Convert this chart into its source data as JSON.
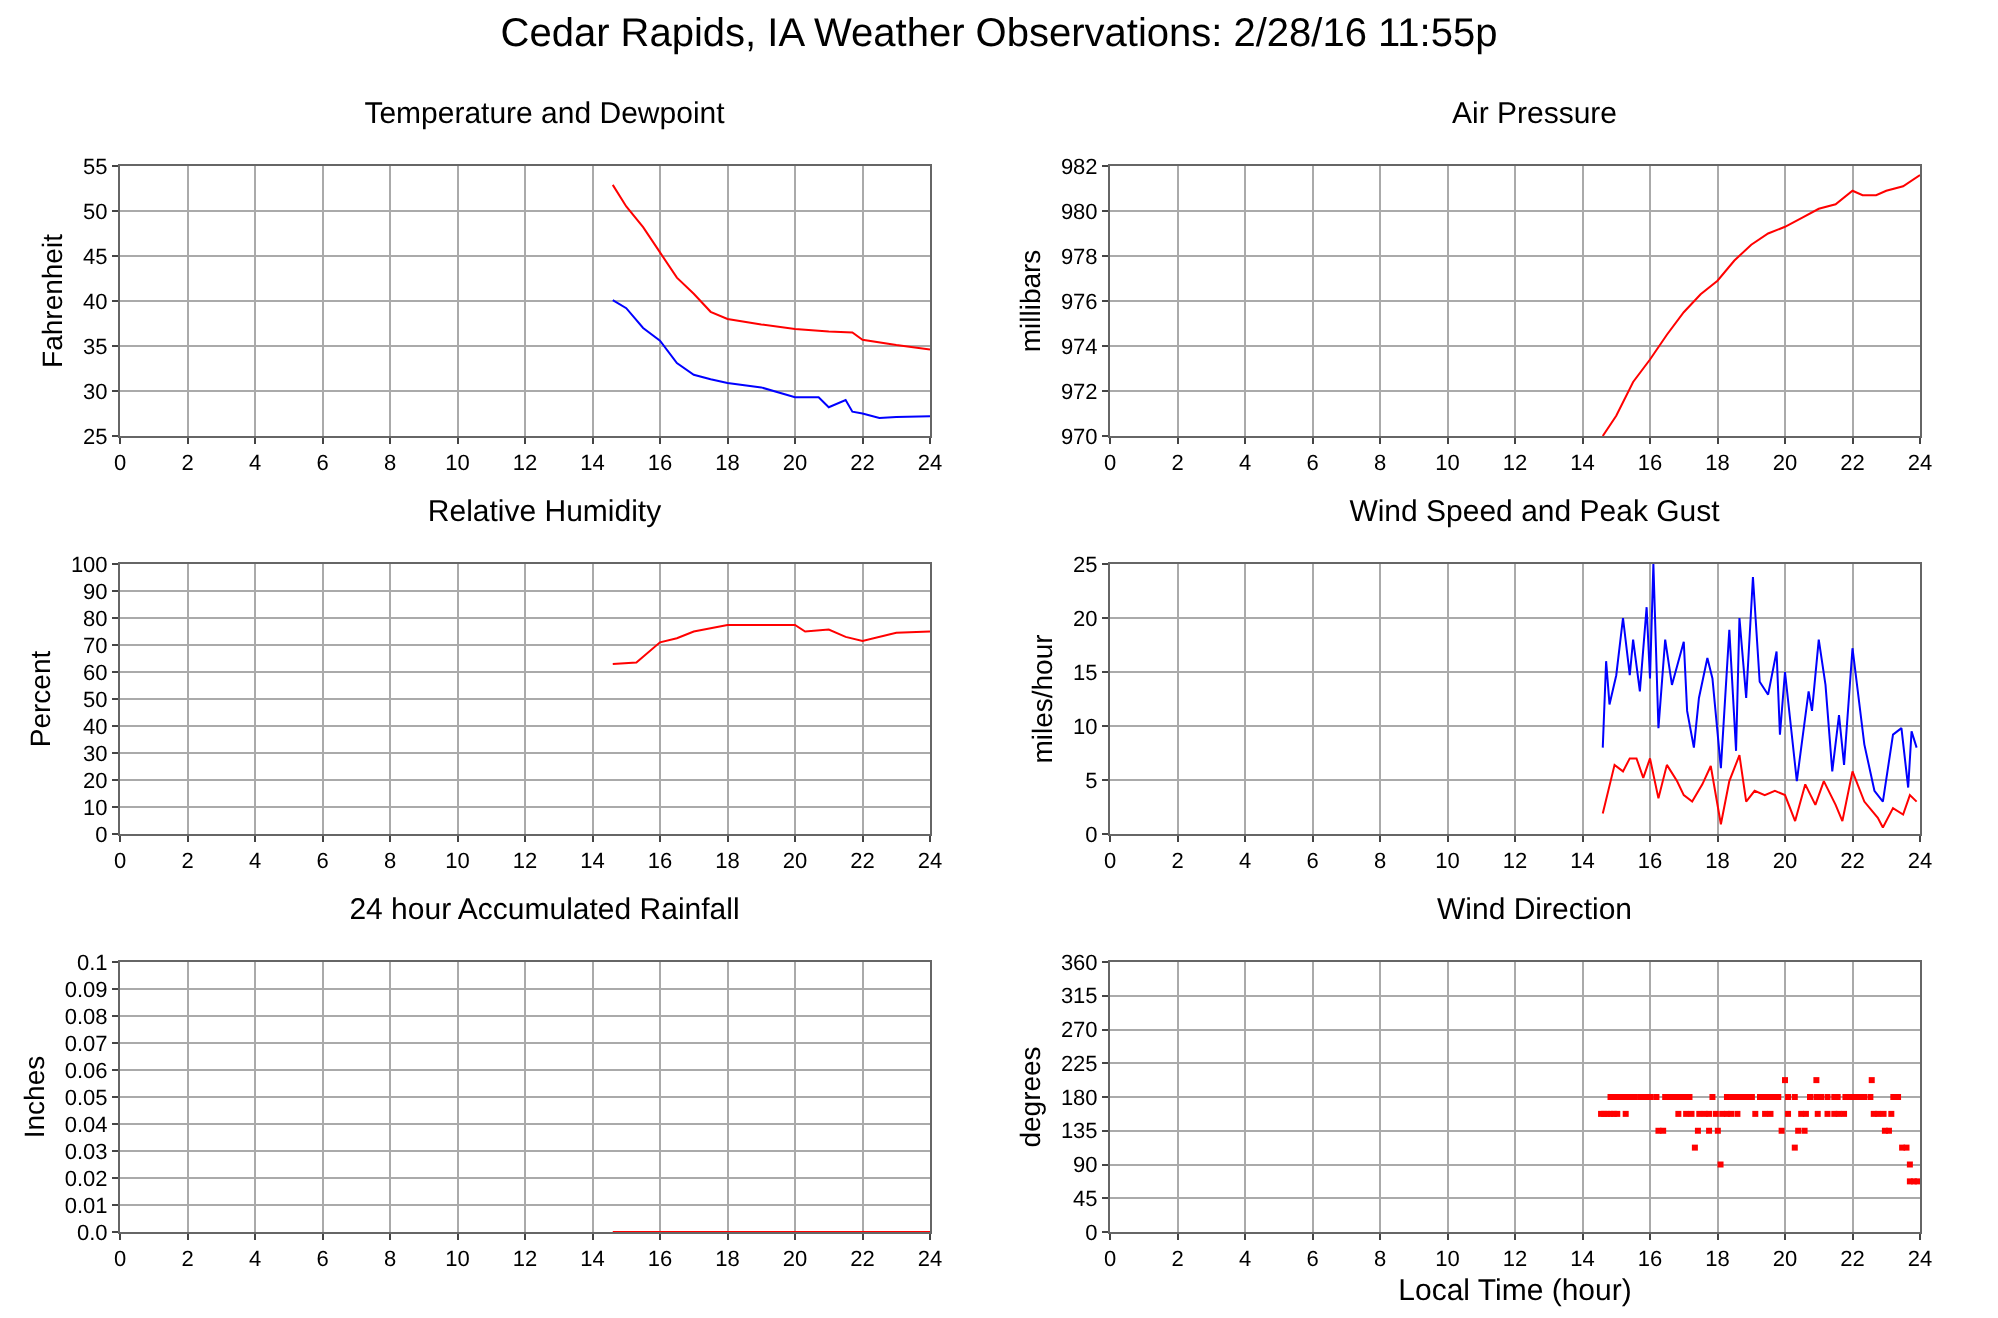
{
  "chart_data": [
    {
      "type": "line",
      "title": "Temperature and Dewpoint",
      "ylabel": "Fahrenheit",
      "annotations": [
        "Cedar Rapids, IA Weather Observations: 2/28/16 11:55p"
      ],
      "grid": true,
      "marker": "none",
      "line_style": "solid",
      "xlim": [
        0,
        24
      ],
      "xticks": [
        0,
        2,
        4,
        6,
        8,
        10,
        12,
        14,
        16,
        18,
        20,
        22,
        24
      ],
      "ylim": [
        25,
        55
      ],
      "yticks": [
        25,
        30,
        35,
        40,
        45,
        50,
        55
      ],
      "series": [
        {
          "color": "#ff0000",
          "x": [
            14.6,
            15,
            15.5,
            16,
            16.5,
            17,
            17.5,
            18,
            19,
            20,
            21,
            21.7,
            22,
            23,
            24
          ],
          "values": [
            52.9,
            50.5,
            48.2,
            45.4,
            42.6,
            40.8,
            38.8,
            38,
            37.4,
            36.9,
            36.6,
            36.5,
            35.7,
            35.1,
            34.6
          ]
        },
        {
          "color": "#0000ff",
          "x": [
            14.6,
            15,
            15.5,
            16,
            16.5,
            17,
            17.5,
            18,
            19,
            20,
            20.7,
            21,
            21.5,
            21.7,
            22,
            22.5,
            23,
            24
          ],
          "values": [
            40.1,
            39.2,
            37,
            35.6,
            33.1,
            31.8,
            31.3,
            30.9,
            30.4,
            29.3,
            29.3,
            28.2,
            29,
            27.7,
            27.5,
            27,
            27.1,
            27.2
          ]
        }
      ]
    },
    {
      "type": "line",
      "title": "Air Pressure",
      "ylabel": "millibars",
      "grid": true,
      "marker": "none",
      "line_style": "solid",
      "xlim": [
        0,
        24
      ],
      "xticks": [
        0,
        2,
        4,
        6,
        8,
        10,
        12,
        14,
        16,
        18,
        20,
        22,
        24
      ],
      "ylim": [
        970,
        982
      ],
      "yticks": [
        970,
        972,
        974,
        976,
        978,
        980,
        982
      ],
      "series": [
        {
          "color": "#ff0000",
          "x": [
            14.6,
            15,
            15.5,
            16,
            16.5,
            17,
            17.5,
            18,
            18.5,
            19,
            19.5,
            20,
            20.5,
            21,
            21.5,
            22,
            22.3,
            22.7,
            23,
            23.5,
            24
          ],
          "values": [
            970,
            970.9,
            972.4,
            973.4,
            974.5,
            975.5,
            976.3,
            976.9,
            977.8,
            978.5,
            979,
            979.3,
            979.7,
            980.1,
            980.3,
            980.9,
            980.7,
            980.7,
            980.9,
            981.1,
            981.6
          ]
        }
      ]
    },
    {
      "type": "line",
      "title": "Relative Humidity",
      "ylabel": "Percent",
      "grid": true,
      "marker": "none",
      "line_style": "solid",
      "xlim": [
        0,
        24
      ],
      "xticks": [
        0,
        2,
        4,
        6,
        8,
        10,
        12,
        14,
        16,
        18,
        20,
        22,
        24
      ],
      "ylim": [
        0,
        100
      ],
      "yticks": [
        0,
        10,
        20,
        30,
        40,
        50,
        60,
        70,
        80,
        90,
        100
      ],
      "series": [
        {
          "color": "#ff0000",
          "x": [
            14.6,
            15.3,
            16,
            16.5,
            17,
            18,
            20,
            20.3,
            21,
            21.5,
            22,
            23,
            24
          ],
          "values": [
            63,
            63.5,
            71,
            72.5,
            75,
            77.4,
            77.4,
            75,
            75.7,
            73,
            71.5,
            74.5,
            75
          ]
        }
      ]
    },
    {
      "type": "line",
      "title": "Wind Speed and Peak Gust",
      "ylabel": "miles/hour",
      "grid": true,
      "marker": "none",
      "line_style": "solid",
      "xlim": [
        0,
        24
      ],
      "xticks": [
        0,
        2,
        4,
        6,
        8,
        10,
        12,
        14,
        16,
        18,
        20,
        22,
        24
      ],
      "ylim": [
        0,
        25
      ],
      "yticks": [
        0,
        5,
        10,
        15,
        20,
        25
      ],
      "series": [
        {
          "color": "#0000ff",
          "x": [
            14.6,
            14.7,
            14.8,
            15,
            15.2,
            15.4,
            15.5,
            15.7,
            15.9,
            16,
            16.1,
            16.25,
            16.45,
            16.65,
            17,
            17.1,
            17.3,
            17.45,
            17.7,
            17.85,
            18.1,
            18.35,
            18.55,
            18.65,
            18.85,
            19.05,
            19.25,
            19.5,
            19.75,
            19.85,
            20,
            20.35,
            20.7,
            20.8,
            21,
            21.2,
            21.4,
            21.6,
            21.75,
            22,
            22.35,
            22.65,
            22.9,
            23.2,
            23.45,
            23.65,
            23.75,
            23.9
          ],
          "values": [
            8,
            16,
            12,
            14.7,
            20,
            14.7,
            18,
            13.2,
            21,
            14.4,
            25,
            9.8,
            18,
            13.8,
            17.8,
            11.4,
            8,
            12.6,
            16.3,
            14.4,
            6.1,
            18.9,
            7.7,
            20,
            12.6,
            23.8,
            14.1,
            12.9,
            16.9,
            9.2,
            15,
            4.9,
            13.2,
            11.4,
            18,
            13.8,
            5.8,
            11,
            6.4,
            17.2,
            8.3,
            4,
            3,
            9.2,
            9.8,
            4.3,
            9.5,
            8
          ]
        },
        {
          "color": "#ff0000",
          "x": [
            14.6,
            14.95,
            15.2,
            15.4,
            15.6,
            15.8,
            16,
            16.25,
            16.5,
            16.8,
            17,
            17.25,
            17.55,
            17.8,
            18.1,
            18.35,
            18.65,
            18.85,
            19.1,
            19.4,
            19.7,
            20,
            20.3,
            20.6,
            20.9,
            21.15,
            21.5,
            21.7,
            22,
            22.35,
            22.75,
            22.9,
            23.2,
            23.5,
            23.7,
            23.9
          ],
          "values": [
            1.9,
            6.4,
            5.8,
            7,
            7,
            5.2,
            7,
            3.3,
            6.4,
            4.9,
            3.6,
            3,
            4.6,
            6.3,
            0.9,
            4.9,
            7.3,
            3,
            4,
            3.6,
            4,
            3.6,
            1.2,
            4.6,
            2.7,
            4.9,
            2.7,
            1.2,
            5.8,
            3,
            1.5,
            0.6,
            2.4,
            1.8,
            3.6,
            3
          ]
        }
      ]
    },
    {
      "type": "line",
      "title": "24 hour Accumulated Rainfall",
      "ylabel": "Inches",
      "grid": true,
      "marker": "none",
      "line_style": "solid",
      "xlim": [
        0,
        24
      ],
      "xticks": [
        0,
        2,
        4,
        6,
        8,
        10,
        12,
        14,
        16,
        18,
        20,
        22,
        24
      ],
      "ylim": [
        0,
        0.1
      ],
      "yticks": [
        {
          "value": 0,
          "label": "0.0"
        },
        0.01,
        0.02,
        0.03,
        0.04,
        0.05,
        0.06,
        0.07,
        0.08,
        0.09,
        0.1
      ],
      "series": [
        {
          "color": "#ff0000",
          "x": [
            14.6,
            24
          ],
          "values": [
            0,
            0
          ]
        }
      ]
    },
    {
      "type": "scatter",
      "title": "Wind Direction",
      "ylabel": "degrees",
      "xlabel": "Local Time (hour)",
      "grid": true,
      "marker": "square",
      "xlim": [
        0,
        24
      ],
      "xticks": [
        0,
        2,
        4,
        6,
        8,
        10,
        12,
        14,
        16,
        18,
        20,
        22,
        24
      ],
      "ylim": [
        0,
        360
      ],
      "yticks": [
        0,
        45,
        90,
        135,
        180,
        225,
        270,
        315,
        360
      ],
      "series": [
        {
          "color": "#ff0000",
          "x": [
            14.55,
            14.64,
            14.73,
            14.83,
            14.93,
            15.03,
            15.28,
            16.84,
            17.07,
            17.23,
            17.46,
            17.62,
            17.75,
            17.95,
            18.14,
            18.28,
            18.4,
            18.59,
            19.12,
            19.41,
            19.57,
            20.09,
            20.48,
            20.62,
            20.97,
            21.26,
            21.46,
            21.59,
            21.75,
            22.63,
            22.76,
            22.92,
            23.15,
            14.83,
            14.97,
            15.12,
            15.28,
            15.42,
            15.55,
            15.71,
            15.86,
            16.02,
            16.19,
            16.45,
            16.58,
            16.72,
            16.88,
            17.03,
            17.17,
            17.85,
            18.28,
            18.44,
            18.59,
            18.73,
            18.87,
            19.02,
            19.26,
            19.41,
            19.57,
            19.7,
            19.8,
            20.09,
            20.29,
            20.74,
            20.93,
            21.07,
            21.26,
            21.46,
            21.56,
            21.79,
            21.91,
            22.04,
            22.18,
            22.34,
            22.53,
            23.21,
            23.35,
            16.25,
            16.39,
            17.42,
            17.75,
            18.01,
            19.9,
            20.39,
            20.58,
            22.96,
            23.08,
            17.33,
            20.29,
            23.47,
            23.6,
            18.09,
            23.7,
            23.7,
            23.82,
            23.93,
            20,
            20.93,
            22.57
          ],
          "values": [
            157.5,
            157.5,
            157.5,
            157.5,
            157.5,
            157.5,
            157.5,
            157.5,
            157.5,
            157.5,
            157.5,
            157.5,
            157.5,
            157.5,
            157.5,
            157.5,
            157.5,
            157.5,
            157.5,
            157.5,
            157.5,
            157.5,
            157.5,
            157.5,
            157.5,
            157.5,
            157.5,
            157.5,
            157.5,
            157.5,
            157.5,
            157.5,
            157.5,
            180,
            180,
            180,
            180,
            180,
            180,
            180,
            180,
            180,
            180,
            180,
            180,
            180,
            180,
            180,
            180,
            180,
            180,
            180,
            180,
            180,
            180,
            180,
            180,
            180,
            180,
            180,
            180,
            180,
            180,
            180,
            180,
            180,
            180,
            180,
            180,
            180,
            180,
            180,
            180,
            180,
            180,
            180,
            180,
            135,
            135,
            135,
            135,
            135,
            135,
            135,
            135,
            135,
            135,
            112.5,
            112.5,
            112.5,
            112.5,
            90,
            90,
            67.5,
            67.5,
            67.5,
            202.5,
            202.5,
            202.5
          ]
        }
      ]
    }
  ]
}
